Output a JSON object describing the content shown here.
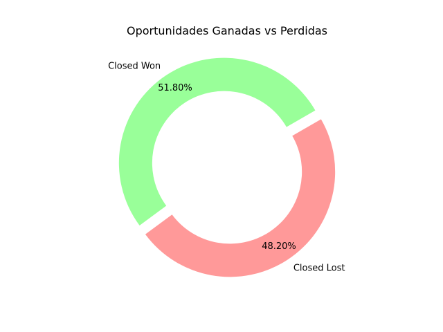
{
  "chart_data": {
    "type": "pie",
    "title": "Oportunidades Ganadas vs Perdidas",
    "donut": true,
    "start_angle_deg": 30,
    "direction": "counterclockwise",
    "exploded": true,
    "labels": [
      "Closed Won",
      "Closed Lost"
    ],
    "values": [
      51.8,
      48.2
    ],
    "percent_labels": [
      "51.80%",
      "48.20%"
    ],
    "colors": [
      "#99ff99",
      "#ff9999"
    ],
    "legend": "none"
  }
}
